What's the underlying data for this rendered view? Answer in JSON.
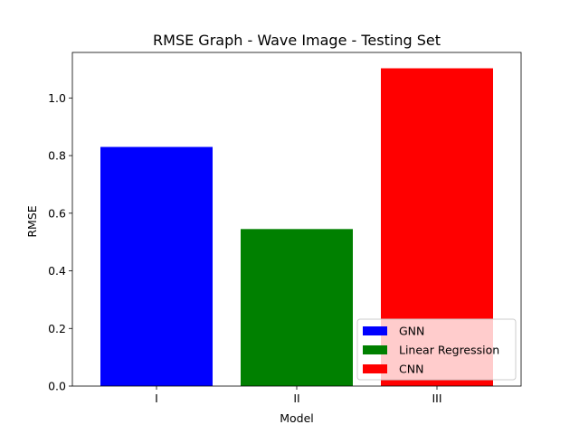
{
  "chart_data": {
    "type": "bar",
    "title": "RMSE Graph - Wave Image - Testing Set",
    "xlabel": "Model",
    "ylabel": "RMSE",
    "categories": [
      "I",
      "II",
      "III"
    ],
    "values": [
      0.83,
      0.545,
      1.103
    ],
    "bar_colors": [
      "#0000ff",
      "#008000",
      "#ff0000"
    ],
    "ylim": [
      0,
      1.158
    ],
    "yticks": [
      0.0,
      0.2,
      0.4,
      0.6,
      0.8,
      1.0
    ],
    "ytick_labels": [
      "0.0",
      "0.2",
      "0.4",
      "0.6",
      "0.8",
      "1.0"
    ],
    "grid": false,
    "legend": {
      "placement": "lower-right",
      "entries": [
        {
          "label": "GNN",
          "color": "#0000ff"
        },
        {
          "label": "Linear Regression",
          "color": "#008000"
        },
        {
          "label": "CNN",
          "color": "#ff0000"
        }
      ]
    }
  }
}
